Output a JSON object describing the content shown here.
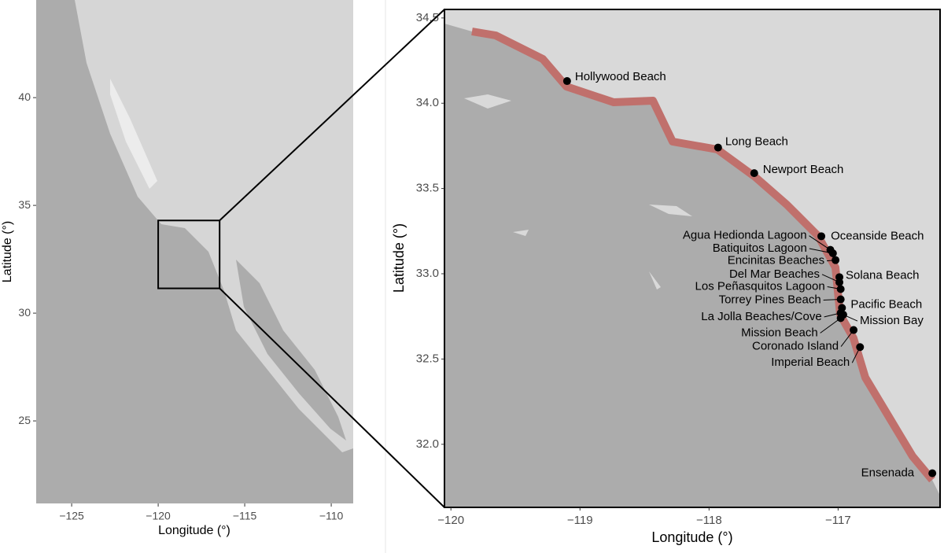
{
  "chart_data": [
    {
      "type": "map",
      "xlabel": "Longitude (°)",
      "ylabel": "Latitude (°)",
      "xlim": [
        -127.05,
        -108.73
      ],
      "ylim": [
        21.17,
        44.53
      ],
      "xticks": [
        {
          "value": -125,
          "label": "−125"
        },
        {
          "value": -120,
          "label": "−120"
        },
        {
          "value": -115,
          "label": "−115"
        },
        {
          "value": -110,
          "label": "−110"
        }
      ],
      "yticks": [
        25,
        30,
        35,
        40
      ],
      "inset_box": {
        "xlim": [
          -120,
          -116.45
        ],
        "ylim": [
          31.15,
          34.3
        ]
      }
    },
    {
      "type": "scatter",
      "xlabel": "Longitude (°)",
      "ylabel": "Latitude (°)",
      "xlim": [
        -120.05,
        -116.21
      ],
      "ylim": [
        31.63,
        34.55
      ],
      "xticks": [
        {
          "value": -120,
          "label": "−120"
        },
        {
          "value": -119,
          "label": "−119"
        },
        {
          "value": -118,
          "label": "−118"
        },
        {
          "value": -117,
          "label": "−117"
        }
      ],
      "yticks": [
        {
          "value": 32,
          "label": "32.0"
        },
        {
          "value": 32.5,
          "label": "32.5"
        },
        {
          "value": 33,
          "label": "33.0"
        },
        {
          "value": 33.5,
          "label": "33.5"
        },
        {
          "value": 34,
          "label": "34.0"
        },
        {
          "value": 34.5,
          "label": "34.5"
        }
      ],
      "color": "#000000",
      "labels": [
        "Hollywood Beach",
        "Long Beach",
        "Newport Beach",
        "Oceanside Beach",
        "Agua Hedionda Lagoon",
        "Batiquitos Lagoon",
        "Encinitas Beaches",
        "Del Mar Beaches",
        "Solana Beach",
        "Los Peñasquitos Lagoon",
        "Torrey Pines Beach",
        "Pacific Beach",
        "La Jolla Beaches/Cove",
        "Mission Bay",
        "Mission Beach",
        "Coronado Island",
        "Imperial Beach",
        "Ensenada"
      ],
      "x": [
        -119.1,
        -117.93,
        -117.65,
        -117.13,
        -117.06,
        -117.04,
        -117.02,
        -116.99,
        -116.99,
        -116.98,
        -116.98,
        -116.97,
        -116.98,
        -116.96,
        -116.98,
        -116.88,
        -116.83,
        -116.27
      ],
      "y": [
        34.13,
        33.74,
        33.59,
        33.22,
        33.14,
        33.12,
        33.08,
        32.95,
        32.98,
        32.91,
        32.85,
        32.8,
        32.77,
        32.76,
        32.74,
        32.67,
        32.57,
        31.83
      ]
    }
  ]
}
